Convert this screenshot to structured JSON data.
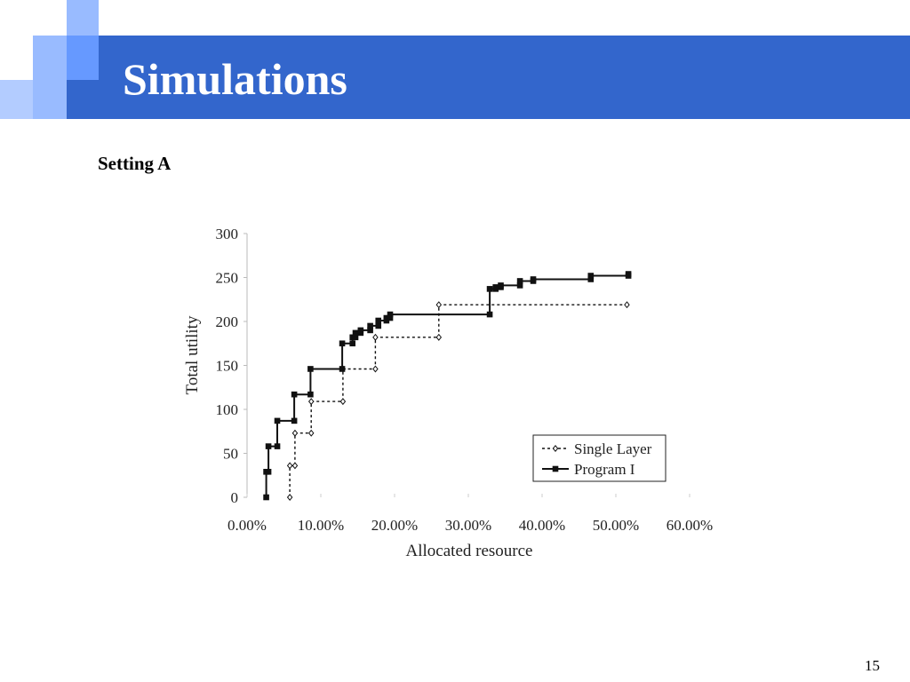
{
  "slide": {
    "title": "Simulations",
    "subtitle": "Setting A",
    "page_number": "15",
    "colors": {
      "title_bar": "#3366cc",
      "deco_light": "#99bbff",
      "deco_mid": "#6699ff"
    }
  },
  "chart_data": {
    "type": "line",
    "title": "",
    "xlabel": "Allocated resource",
    "ylabel": "Total utility",
    "xlim": [
      0,
      60
    ],
    "ylim": [
      0,
      300
    ],
    "x_ticks": [
      "0.00%",
      "10.00%",
      "20.00%",
      "30.00%",
      "40.00%",
      "50.00%",
      "60.00%"
    ],
    "y_ticks": [
      "0",
      "50",
      "100",
      "150",
      "200",
      "250",
      "300"
    ],
    "x_unit": "%",
    "grid": false,
    "legend_position": "bottom-right",
    "series": [
      {
        "name": "Single Layer",
        "style": "dotted",
        "marker": "open-diamond",
        "points": [
          [
            5.8,
            0
          ],
          [
            5.8,
            36
          ],
          [
            6.5,
            36
          ],
          [
            6.5,
            73
          ],
          [
            8.7,
            73
          ],
          [
            8.7,
            109
          ],
          [
            13.0,
            109
          ],
          [
            13.0,
            146
          ],
          [
            17.4,
            146
          ],
          [
            17.4,
            182
          ],
          [
            26.0,
            182
          ],
          [
            26.0,
            219
          ],
          [
            51.5,
            219
          ]
        ]
      },
      {
        "name": "Program I",
        "style": "solid",
        "marker": "filled-square",
        "points": [
          [
            2.6,
            0
          ],
          [
            2.6,
            29
          ],
          [
            2.9,
            29
          ],
          [
            2.9,
            58
          ],
          [
            4.1,
            58
          ],
          [
            4.1,
            87
          ],
          [
            6.4,
            87
          ],
          [
            6.4,
            117
          ],
          [
            8.6,
            117
          ],
          [
            8.6,
            146
          ],
          [
            12.9,
            146
          ],
          [
            12.9,
            175
          ],
          [
            14.3,
            175
          ],
          [
            14.3,
            182
          ],
          [
            14.7,
            182
          ],
          [
            14.7,
            187
          ],
          [
            15.4,
            187
          ],
          [
            15.4,
            190
          ],
          [
            16.7,
            190
          ],
          [
            16.7,
            195
          ],
          [
            17.8,
            195
          ],
          [
            17.8,
            201
          ],
          [
            18.9,
            201
          ],
          [
            18.9,
            204
          ],
          [
            19.4,
            204
          ],
          [
            19.4,
            208
          ],
          [
            32.9,
            208
          ],
          [
            32.9,
            237
          ],
          [
            33.7,
            237
          ],
          [
            33.7,
            239
          ],
          [
            34.4,
            239
          ],
          [
            34.4,
            241
          ],
          [
            37.0,
            241
          ],
          [
            37.0,
            246
          ],
          [
            38.8,
            246
          ],
          [
            38.8,
            248
          ],
          [
            46.6,
            248
          ],
          [
            46.6,
            252
          ],
          [
            51.7,
            252
          ],
          [
            51.7,
            254
          ]
        ]
      }
    ]
  }
}
